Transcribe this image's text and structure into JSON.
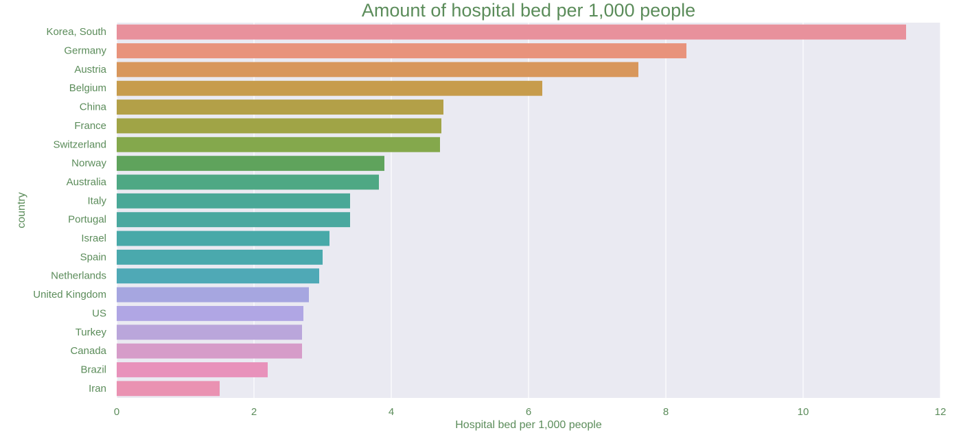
{
  "chart_data": {
    "type": "bar",
    "orientation": "horizontal",
    "title": "Amount of hospital bed per 1,000 people",
    "xlabel": "Hospital bed per 1,000 people",
    "ylabel": "country",
    "xlim": [
      0,
      12
    ],
    "xticks": [
      0,
      2,
      4,
      6,
      8,
      10,
      12
    ],
    "grid": true,
    "legend": "none",
    "categories": [
      "Korea, South",
      "Germany",
      "Austria",
      "Belgium",
      "China",
      "France",
      "Switzerland",
      "Norway",
      "Australia",
      "Italy",
      "Portugal",
      "Israel",
      "Spain",
      "Netherlands",
      "United Kingdom",
      "US",
      "Turkey",
      "Canada",
      "Brazil",
      "Iran"
    ],
    "values": [
      11.5,
      8.3,
      7.6,
      6.2,
      4.76,
      4.73,
      4.71,
      3.9,
      3.82,
      3.4,
      3.4,
      3.1,
      3.0,
      2.95,
      2.8,
      2.72,
      2.7,
      2.7,
      2.2,
      1.5
    ],
    "colors": [
      "#e8919c",
      "#e8937c",
      "#d8975c",
      "#c79c4c",
      "#b3a048",
      "#a0a446",
      "#84a84c",
      "#5fa35c",
      "#4ea884",
      "#49a897",
      "#4aa89f",
      "#48a9a8",
      "#4aa9ad",
      "#4fa9b6",
      "#a6a6e0",
      "#b0a6e4",
      "#baa6db",
      "#d69cc9",
      "#e892bb",
      "#ea92b2"
    ],
    "text_color": "#5b8c5a",
    "background": "#eaeaf2"
  }
}
